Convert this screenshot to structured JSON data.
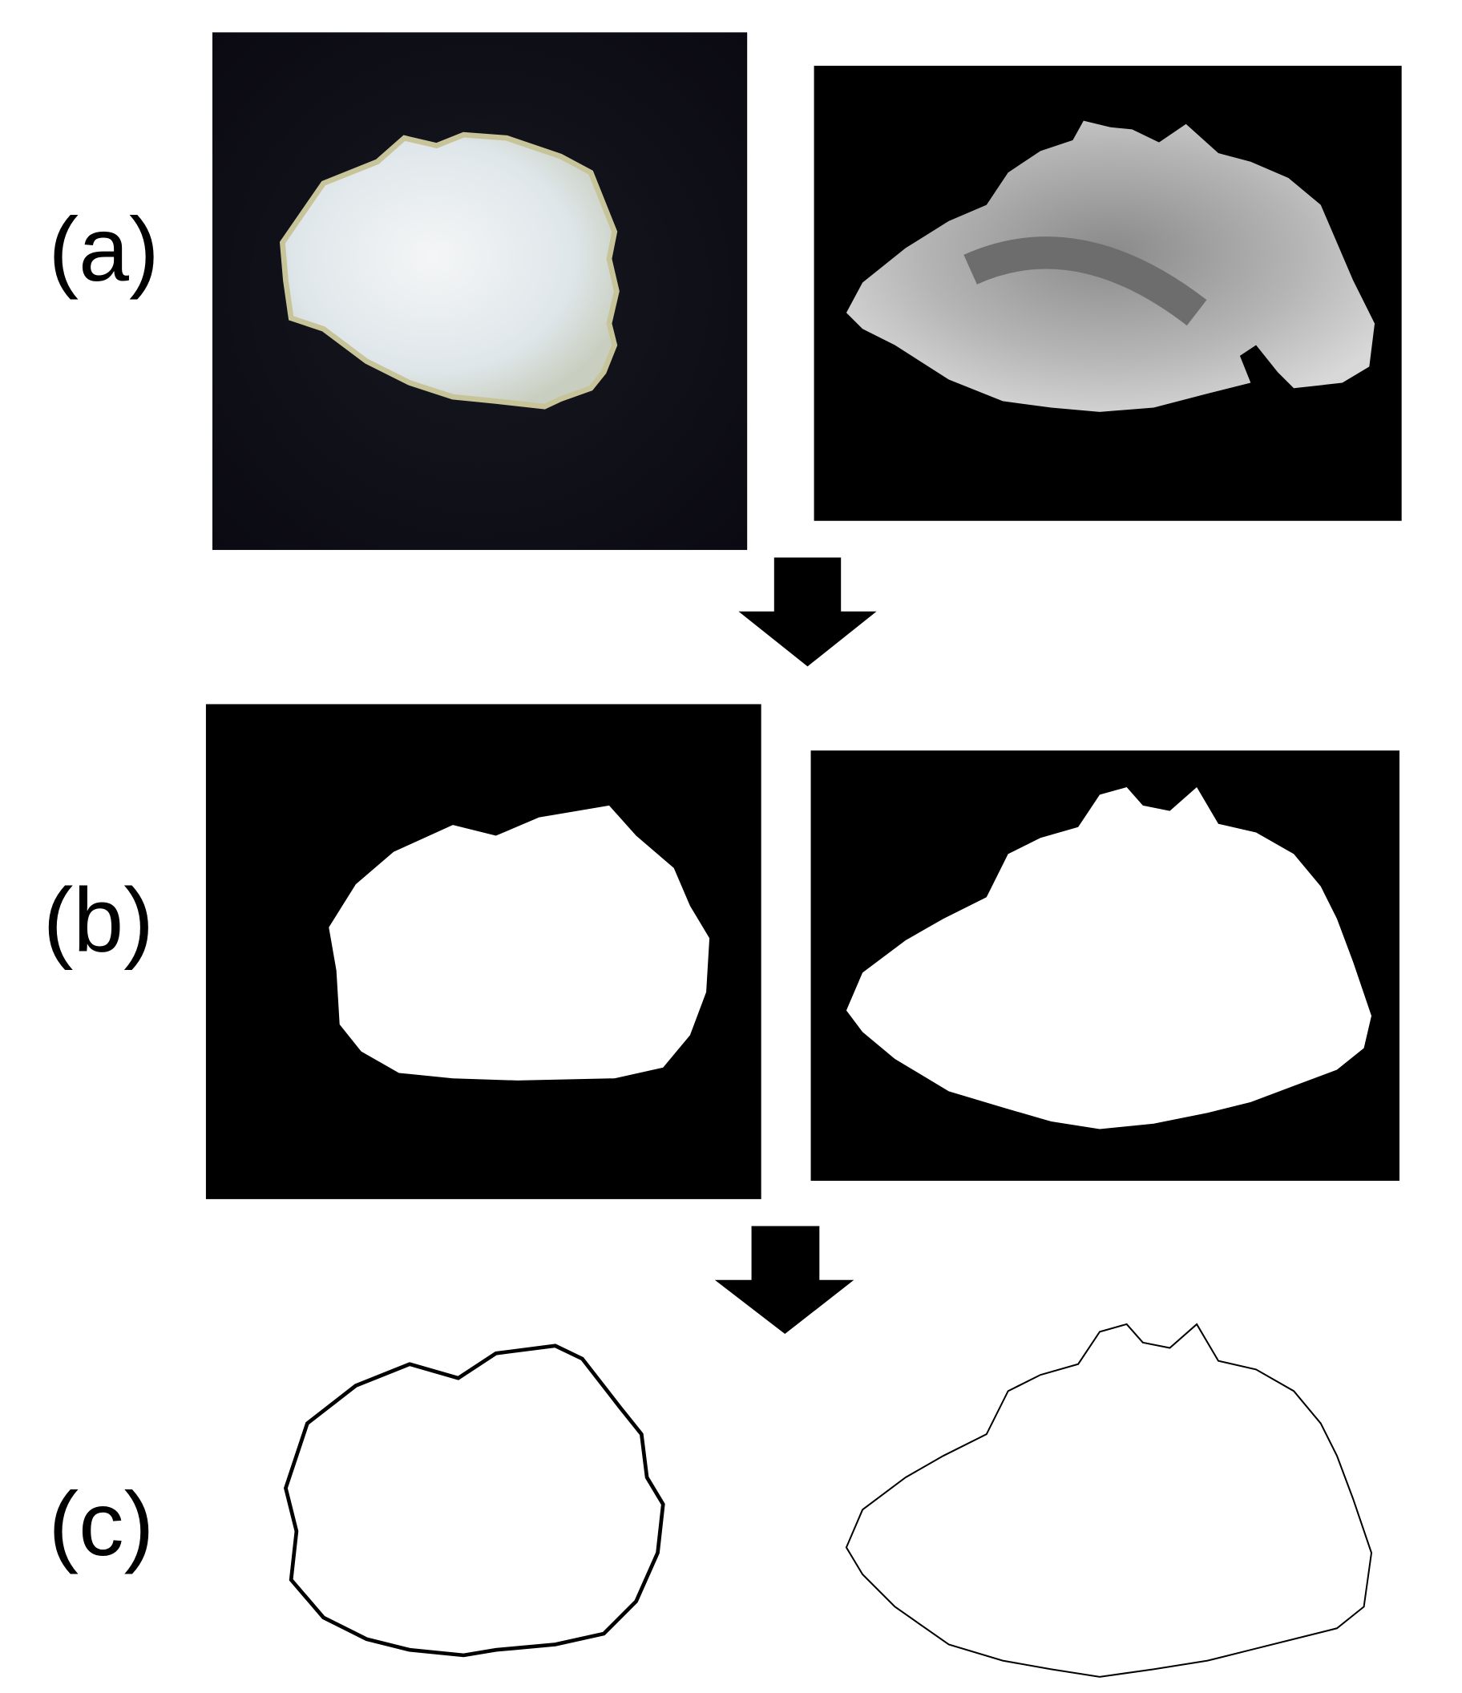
{
  "panels": {
    "a": {
      "label": "(a)"
    },
    "b": {
      "label": "(b)"
    },
    "c": {
      "label": "(c)"
    }
  }
}
